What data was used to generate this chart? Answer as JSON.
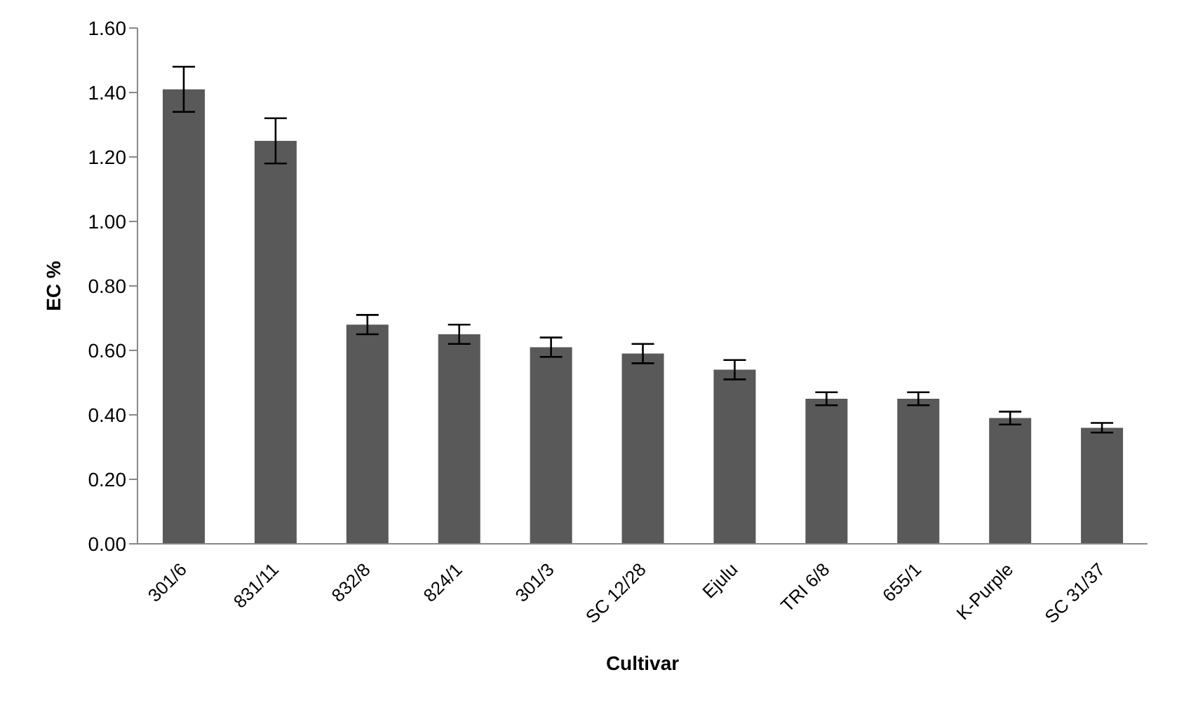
{
  "chart_data": {
    "type": "bar",
    "xlabel": "Cultivar",
    "ylabel": "EC %",
    "categories": [
      "301/6",
      "831/11",
      "832/8",
      "824/1",
      "301/3",
      "SC 12/28",
      "Ejulu",
      "TRI 6/8",
      "655/1",
      "K-Purple",
      "SC 31/37"
    ],
    "values": [
      1.41,
      1.25,
      0.68,
      0.65,
      0.61,
      0.59,
      0.54,
      0.45,
      0.45,
      0.39,
      0.36
    ],
    "errors": [
      0.07,
      0.07,
      0.03,
      0.03,
      0.03,
      0.03,
      0.03,
      0.02,
      0.02,
      0.02,
      0.015
    ],
    "color": "#595959",
    "ylim": [
      0,
      1.6
    ],
    "yticks": [
      {
        "value": 0,
        "label": "0.00"
      },
      {
        "value": 0.2,
        "label": "0.20"
      },
      {
        "value": 0.4,
        "label": "0.40"
      },
      {
        "value": 0.6,
        "label": "0.60"
      },
      {
        "value": 0.8,
        "label": "0.80"
      },
      {
        "value": 1,
        "label": "1.00"
      },
      {
        "value": 1.2,
        "label": "1.20"
      },
      {
        "value": 1.4,
        "label": "1.40"
      },
      {
        "value": 1.6,
        "label": "1.60"
      }
    ],
    "grid": false,
    "legend": false
  }
}
